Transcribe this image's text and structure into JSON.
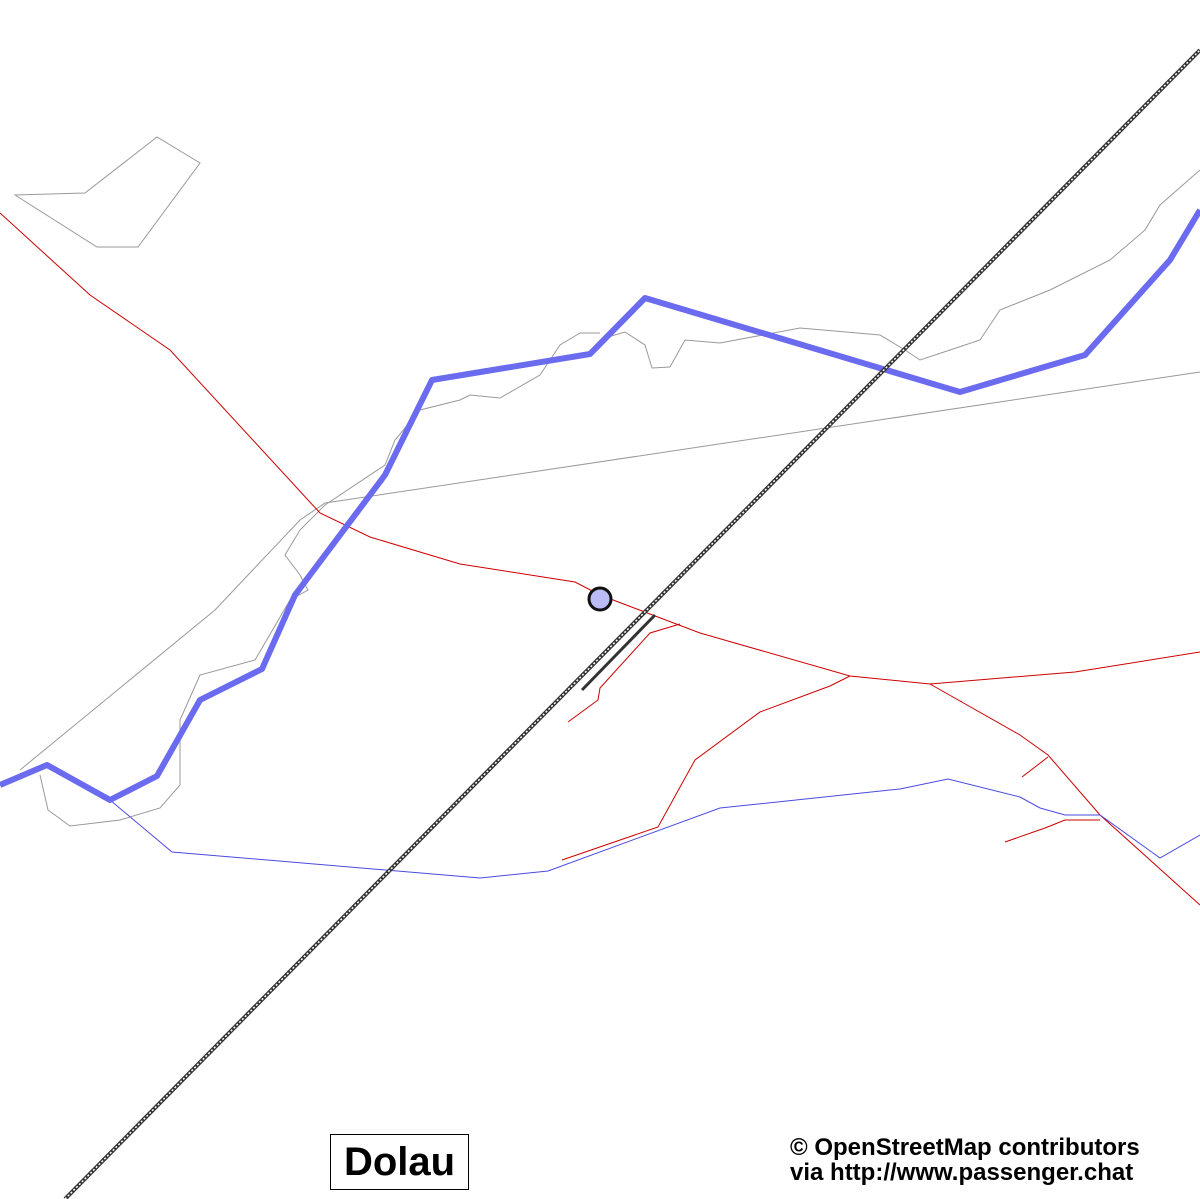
{
  "map": {
    "place_label": "Dolau",
    "attribution_line1": "© OpenStreetMap contributors",
    "attribution_line2": "via http://www.passenger.chat",
    "colors": {
      "road": "#cc0000",
      "river": "#6b6bf0",
      "stream": "#4a4ae0",
      "boundary": "#999999",
      "railway": "#333333",
      "station_marker": "#bbbbf5"
    },
    "features": [
      "railway",
      "river",
      "stream",
      "roads",
      "station-marker"
    ]
  }
}
